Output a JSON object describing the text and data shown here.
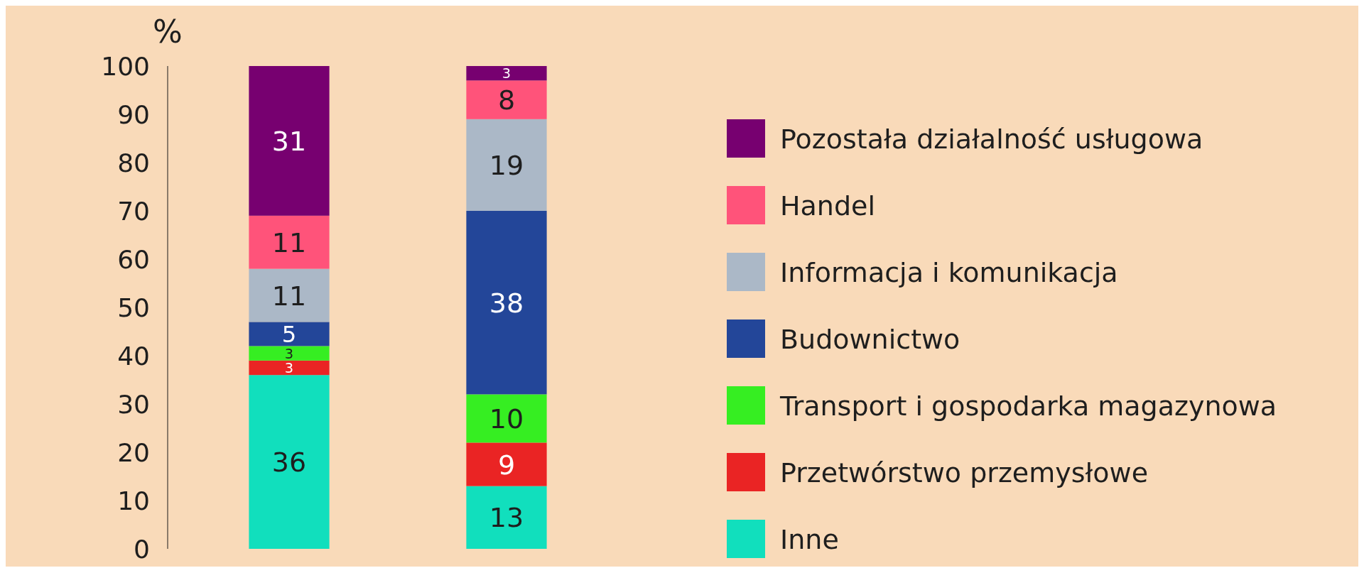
{
  "chart_data": {
    "type": "bar",
    "stacked": true,
    "ylabel": "%",
    "categories": [
      null,
      null
    ],
    "series": [
      {
        "name": "Inne",
        "color": "#11dfbd",
        "values": [
          36,
          13
        ]
      },
      {
        "name": "Przetwórstwo przemysłowe",
        "color": "#ea2424",
        "values": [
          3,
          9
        ]
      },
      {
        "name": "Transport i gospodarka magazynowa",
        "color": "#36ee22",
        "values": [
          3,
          10
        ]
      },
      {
        "name": "Budownictwo",
        "color": "#234699",
        "values": [
          5,
          38
        ]
      },
      {
        "name": "Informacja i komunikacja",
        "color": "#abb8c7",
        "values": [
          11,
          19
        ]
      },
      {
        "name": "Handel",
        "color": "#ff537a",
        "values": [
          11,
          8
        ]
      },
      {
        "name": "Pozostała działalność usługowa",
        "color": "#770070",
        "values": [
          31,
          3
        ]
      }
    ],
    "ylim": [
      0,
      100
    ],
    "yticks": [
      0,
      10,
      20,
      30,
      40,
      50,
      60,
      70,
      80,
      90,
      100
    ],
    "data_labels": true,
    "legend": "right",
    "grid": false
  }
}
